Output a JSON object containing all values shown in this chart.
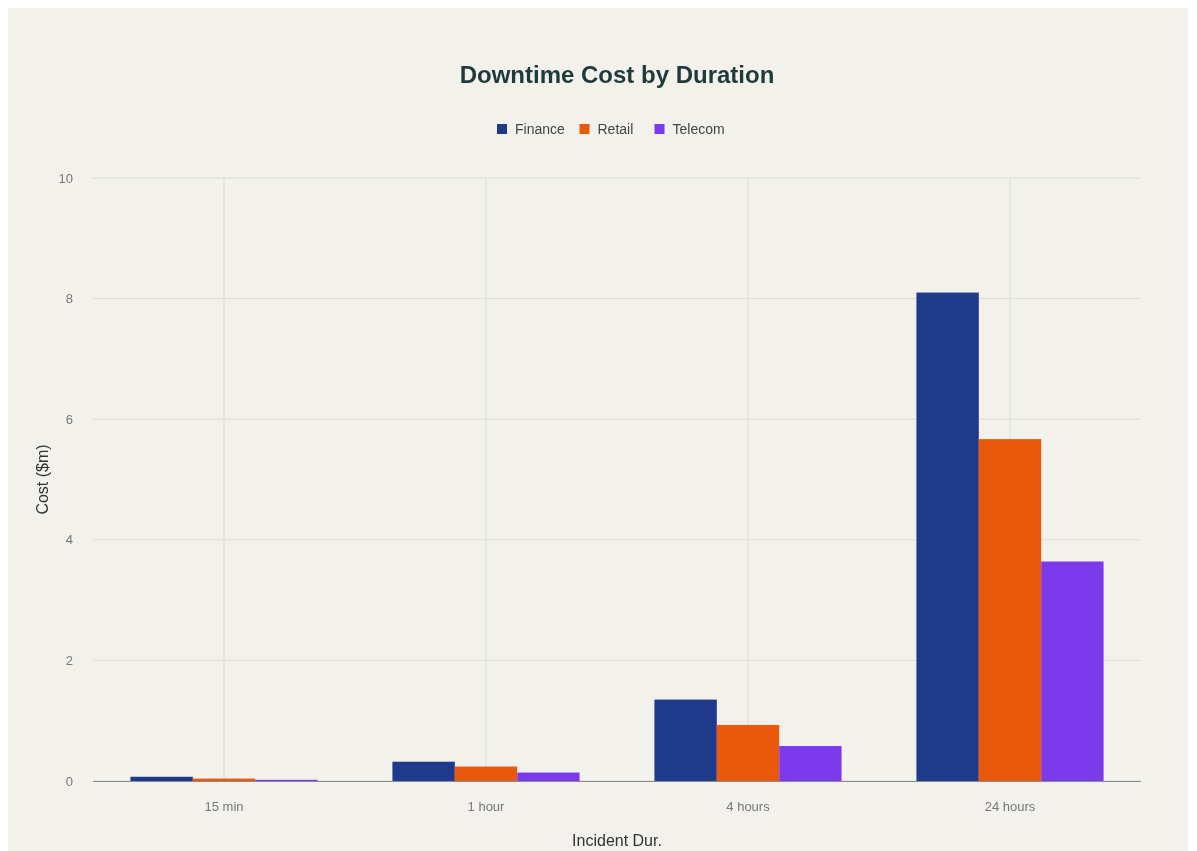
{
  "chart_data": {
    "type": "bar",
    "title": "Downtime Cost by Duration",
    "xlabel": "Incident Dur.",
    "ylabel": "Cost ($m)",
    "categories": [
      "15 min",
      "1 hour",
      "4 hours",
      "24 hours"
    ],
    "series": [
      {
        "name": "Finance",
        "color": "#1f3a8a",
        "values": [
          0.07,
          0.32,
          1.35,
          8.1
        ]
      },
      {
        "name": "Retail",
        "color": "#ea580c",
        "values": [
          0.04,
          0.24,
          0.93,
          5.67
        ]
      },
      {
        "name": "Telecom",
        "color": "#7c3aed",
        "values": [
          0.02,
          0.14,
          0.58,
          3.64
        ]
      }
    ],
    "ylim": [
      0,
      10
    ],
    "yticks": [
      0,
      2,
      4,
      6,
      8,
      10
    ],
    "grid": true,
    "legend": "top"
  }
}
